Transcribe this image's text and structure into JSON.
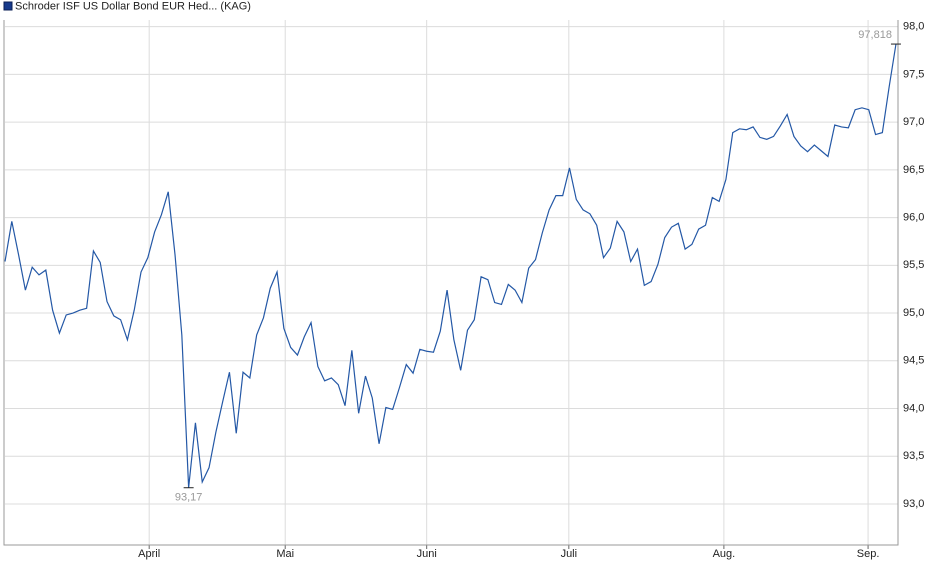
{
  "chart_data": {
    "type": "line",
    "series": [
      {
        "name": "Schroder ISF US Dollar Bond EUR Hed... (KAG)",
        "color": "#2458a6",
        "values": [
          95.54,
          95.96,
          95.61,
          95.24,
          95.48,
          95.4,
          95.45,
          95.03,
          94.79,
          94.98,
          95.0,
          95.03,
          95.05,
          95.65,
          95.53,
          95.12,
          94.97,
          94.93,
          94.72,
          95.03,
          95.43,
          95.58,
          95.85,
          96.03,
          96.27,
          95.61,
          94.77,
          93.17,
          93.85,
          93.23,
          93.38,
          93.75,
          94.07,
          94.38,
          93.74,
          94.38,
          94.32,
          94.77,
          94.95,
          95.26,
          95.43,
          94.84,
          94.64,
          94.56,
          94.75,
          94.9,
          94.44,
          94.29,
          94.32,
          94.25,
          94.03,
          94.61,
          93.95,
          94.34,
          94.11,
          93.63,
          94.01,
          93.99,
          94.22,
          94.46,
          94.37,
          94.62,
          94.6,
          94.59,
          94.81,
          95.24,
          94.72,
          94.4,
          94.82,
          94.93,
          95.38,
          95.35,
          95.11,
          95.09,
          95.3,
          95.24,
          95.11,
          95.47,
          95.56,
          95.84,
          96.08,
          96.23,
          96.23,
          96.52,
          96.19,
          96.08,
          96.04,
          95.92,
          95.58,
          95.68,
          95.96,
          95.85,
          95.54,
          95.67,
          95.29,
          95.33,
          95.51,
          95.79,
          95.9,
          95.94,
          95.67,
          95.72,
          95.88,
          95.92,
          96.21,
          96.17,
          96.4,
          96.89,
          96.93,
          96.92,
          96.95,
          96.84,
          96.82,
          96.85,
          96.96,
          97.08,
          96.85,
          96.75,
          96.69,
          96.76,
          96.7,
          96.64,
          96.97,
          96.95,
          96.94,
          97.13,
          97.15,
          97.13,
          96.87,
          96.89,
          97.37,
          97.818
        ]
      }
    ],
    "x": [
      0,
      1,
      2,
      3,
      4,
      5,
      6,
      7,
      8,
      9,
      10,
      11,
      12,
      13,
      14,
      15,
      16,
      17,
      18,
      19,
      20,
      21,
      22,
      23,
      24,
      25,
      26,
      27,
      28,
      29,
      30,
      31,
      32,
      33,
      34,
      35,
      36,
      37,
      38,
      39,
      40,
      41,
      42,
      43,
      44,
      45,
      46,
      47,
      48,
      49,
      50,
      51,
      52,
      53,
      54,
      55,
      56,
      57,
      58,
      59,
      60,
      61,
      62,
      63,
      64,
      65,
      66,
      67,
      68,
      69,
      70,
      71,
      72,
      73,
      74,
      75,
      76,
      77,
      78,
      79,
      80,
      81,
      82,
      83,
      84,
      85,
      86,
      87,
      88,
      89,
      90,
      91,
      92,
      93,
      94,
      95,
      96,
      97,
      98,
      99,
      100,
      101,
      102,
      103,
      104,
      105,
      106,
      107,
      108,
      109,
      110,
      111,
      112,
      113,
      114,
      115,
      116,
      117,
      118,
      119,
      120,
      121,
      122,
      123,
      124,
      125,
      126,
      127,
      128,
      129,
      130,
      131
    ],
    "xlim": [
      0,
      131.3
    ],
    "xticks": [
      {
        "value": 21.2,
        "label": "April"
      },
      {
        "value": 41.2,
        "label": "Mai"
      },
      {
        "value": 62.0,
        "label": "Juni"
      },
      {
        "value": 82.9,
        "label": "Juli"
      },
      {
        "value": 105.7,
        "label": "Aug."
      },
      {
        "value": 126.9,
        "label": "Sep."
      }
    ],
    "ylim": [
      92.57,
      98.07
    ],
    "yticks": [
      {
        "value": 93.0,
        "label": "93,0"
      },
      {
        "value": 93.5,
        "label": "93,5"
      },
      {
        "value": 94.0,
        "label": "94,0"
      },
      {
        "value": 94.5,
        "label": "94,5"
      },
      {
        "value": 95.0,
        "label": "95,0"
      },
      {
        "value": 95.5,
        "label": "95,5"
      },
      {
        "value": 96.0,
        "label": "96,0"
      },
      {
        "value": 96.5,
        "label": "96,5"
      },
      {
        "value": 97.0,
        "label": "97,0"
      },
      {
        "value": 97.5,
        "label": "97,5"
      },
      {
        "value": 98.0,
        "label": "98,0"
      }
    ],
    "extremes": [
      {
        "index": 27,
        "label": "93,17",
        "position": "below"
      },
      {
        "index": 131,
        "label": "97,818",
        "position": "above"
      }
    ],
    "grid": true,
    "legend": "top-left"
  }
}
